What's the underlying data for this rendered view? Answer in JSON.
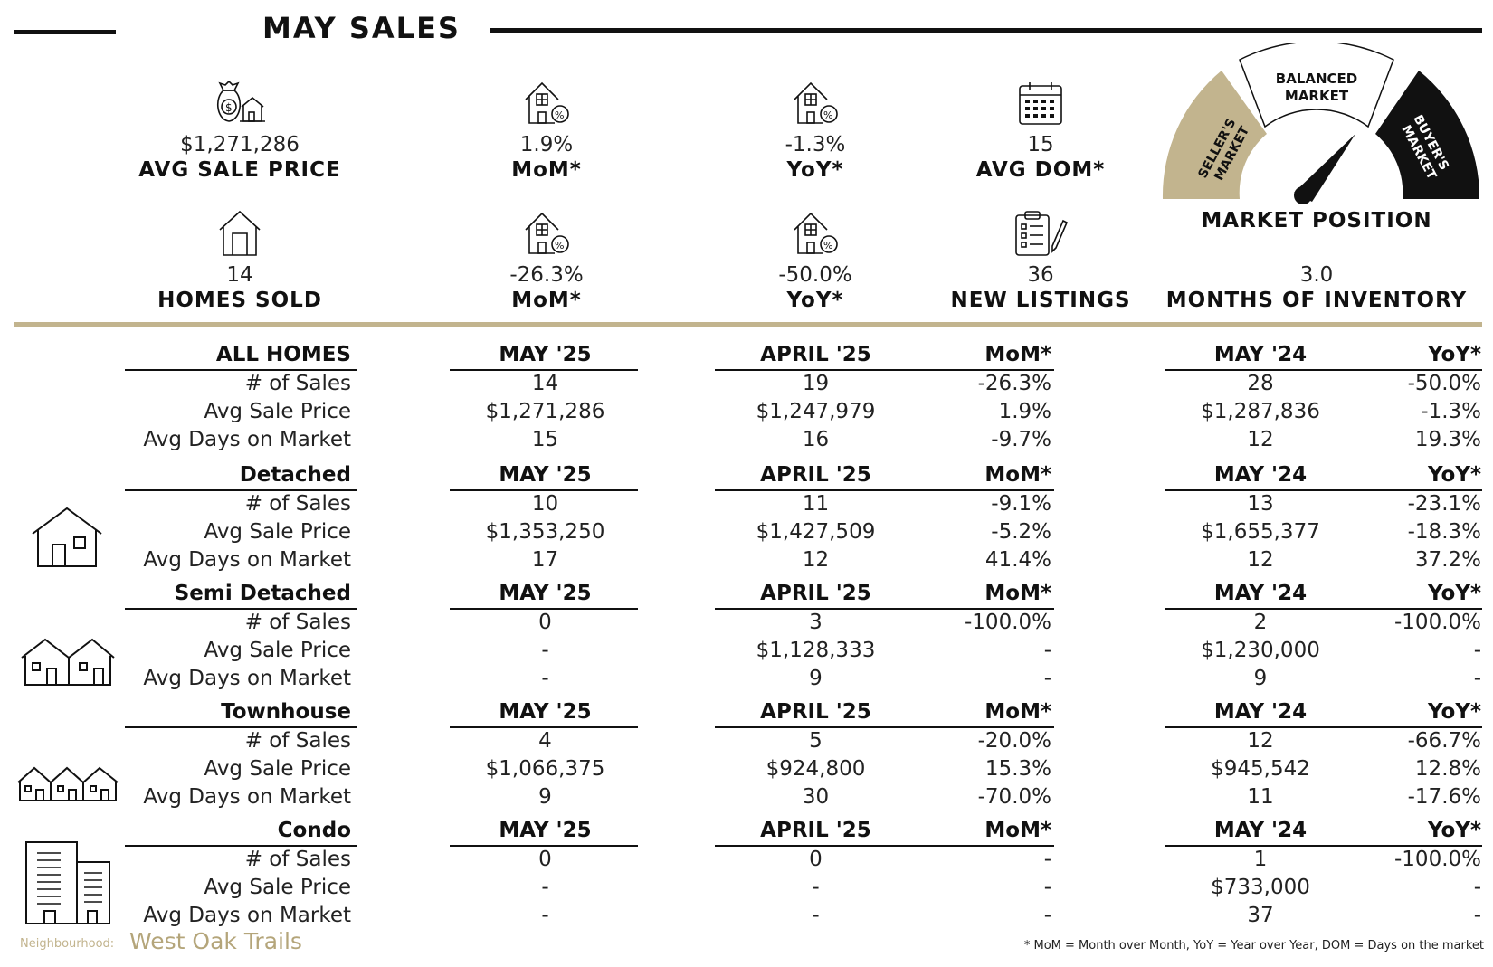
{
  "page_title": "MAY SALES",
  "stats_row1": [
    {
      "icon": "money-bag-house-icon",
      "value": "$1,271,286",
      "label": "AVG SALE PRICE"
    },
    {
      "icon": "house-percent-icon",
      "value": "1.9%",
      "label": "MoM*"
    },
    {
      "icon": "house-percent-icon",
      "value": "-1.3%",
      "label": "YoY*"
    },
    {
      "icon": "calendar-icon",
      "value": "15",
      "label": "AVG DOM*"
    }
  ],
  "stats_row2": [
    {
      "icon": "house-icon",
      "value": "14",
      "label": "HOMES SOLD"
    },
    {
      "icon": "house-percent-icon",
      "value": "-26.3%",
      "label": "MoM*"
    },
    {
      "icon": "house-percent-icon",
      "value": "-50.0%",
      "label": "YoY*"
    },
    {
      "icon": "clipboard-pencil-icon",
      "value": "36",
      "label": "NEW LISTINGS"
    }
  ],
  "gauge": {
    "sellers_label": "SELLER'S MARKET",
    "balanced_label": "BALANCED MARKET",
    "buyers_label": "BUYER'S MARKET",
    "title": "MARKET POSITION",
    "months_value": "3.0",
    "months_label": "MONTHS OF INVENTORY",
    "colors": {
      "sellers": "#c2b48e",
      "balanced": "#ffffff",
      "buyers": "#111111"
    }
  },
  "table": {
    "columns": [
      "MAY '25",
      "APRIL '25",
      "MoM*",
      "MAY '24",
      "YoY*"
    ],
    "sections": [
      {
        "name": "ALL HOMES",
        "icon": "",
        "rows": [
          {
            "label": "# of Sales",
            "cells": [
              "14",
              "19",
              "-26.3%",
              "28",
              "-50.0%"
            ]
          },
          {
            "label": "Avg Sale Price",
            "cells": [
              "$1,271,286",
              "$1,247,979",
              "1.9%",
              "$1,287,836",
              "-1.3%"
            ]
          },
          {
            "label": "Avg Days on Market",
            "cells": [
              "15",
              "16",
              "-9.7%",
              "12",
              "19.3%"
            ]
          }
        ]
      },
      {
        "name": "Detached",
        "icon": "detached-house-icon",
        "rows": [
          {
            "label": "# of Sales",
            "cells": [
              "10",
              "11",
              "-9.1%",
              "13",
              "-23.1%"
            ]
          },
          {
            "label": "Avg Sale Price",
            "cells": [
              "$1,353,250",
              "$1,427,509",
              "-5.2%",
              "$1,655,377",
              "-18.3%"
            ]
          },
          {
            "label": "Avg Days on Market",
            "cells": [
              "17",
              "12",
              "41.4%",
              "12",
              "37.2%"
            ]
          }
        ]
      },
      {
        "name": "Semi Detached",
        "icon": "semi-detached-house-icon",
        "rows": [
          {
            "label": "# of Sales",
            "cells": [
              "0",
              "3",
              "-100.0%",
              "2",
              "-100.0%"
            ]
          },
          {
            "label": "Avg Sale Price",
            "cells": [
              "-",
              "$1,128,333",
              "-",
              "$1,230,000",
              "-"
            ]
          },
          {
            "label": "Avg Days on Market",
            "cells": [
              "-",
              "9",
              "-",
              "9",
              "-"
            ]
          }
        ]
      },
      {
        "name": "Townhouse",
        "icon": "townhouse-icon",
        "rows": [
          {
            "label": "# of Sales",
            "cells": [
              "4",
              "5",
              "-20.0%",
              "12",
              "-66.7%"
            ]
          },
          {
            "label": "Avg Sale Price",
            "cells": [
              "$1,066,375",
              "$924,800",
              "15.3%",
              "$945,542",
              "12.8%"
            ]
          },
          {
            "label": "Avg Days on Market",
            "cells": [
              "9",
              "30",
              "-70.0%",
              "11",
              "-17.6%"
            ]
          }
        ]
      },
      {
        "name": "Condo",
        "icon": "condo-building-icon",
        "rows": [
          {
            "label": "# of Sales",
            "cells": [
              "0",
              "0",
              "-",
              "1",
              "-100.0%"
            ]
          },
          {
            "label": "Avg Sale Price",
            "cells": [
              "-",
              "-",
              "-",
              "$733,000",
              "-"
            ]
          },
          {
            "label": "Avg Days on Market",
            "cells": [
              "-",
              "-",
              "-",
              "37",
              "-"
            ]
          }
        ]
      }
    ]
  },
  "footer": {
    "neighbourhood_label": "Neighbourhood:",
    "neighbourhood_name": "West Oak Trails",
    "footnote": "* MoM = Month over Month, YoY = Year over Year, DOM = Days on the market"
  }
}
